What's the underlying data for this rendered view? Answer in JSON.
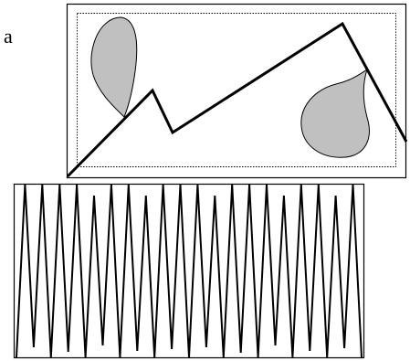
{
  "panel_label": "a",
  "colors": {
    "stroke": "#000000",
    "blob_fill": "#c0c0c0",
    "background": "#ffffff"
  },
  "top_panel": {
    "outer_border": "solid",
    "inner_border": "dotted",
    "shapes": [
      "left-teardrop-blob",
      "right-teardrop-blob",
      "polyline-path"
    ]
  },
  "bottom_panel": {
    "border": "solid",
    "pattern": "zigzag"
  }
}
